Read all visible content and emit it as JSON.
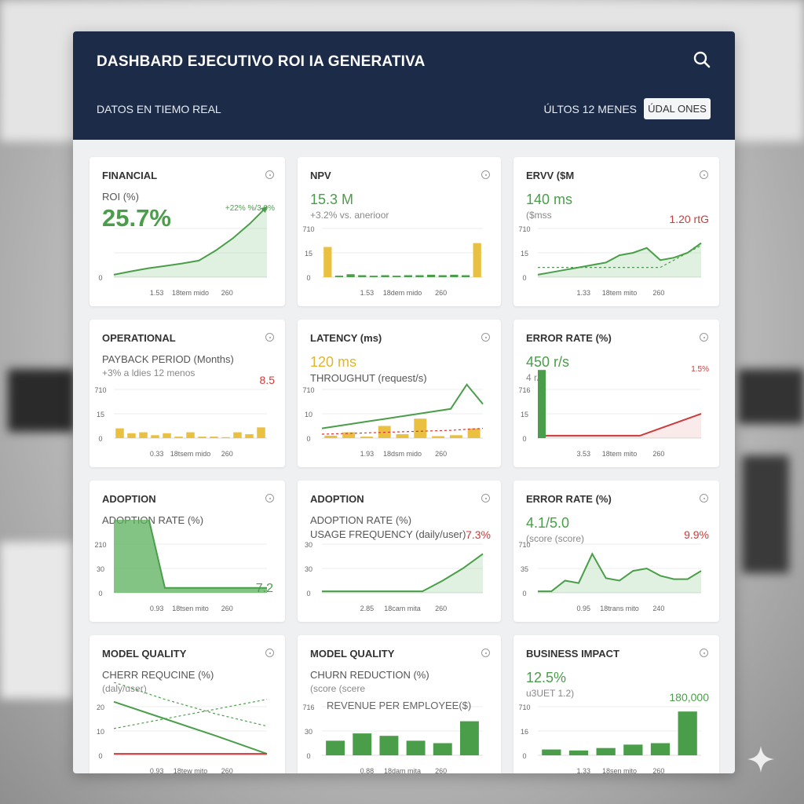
{
  "header": {
    "title": "DASHBARD EJECUTIVO ROI IA GENERATIVA",
    "subtitle": "DATOS EN TIEMO REAL",
    "range": "ÚLTOS 12 MENES",
    "update_button": "ÚDAL ONES",
    "search_icon": "search-icon"
  },
  "colors": {
    "header": "#1b2b48",
    "green": "#4a9e4a",
    "yellow": "#e9c040",
    "red": "#cc3b3b"
  },
  "cards": [
    {
      "title": "FINANCIAL",
      "lines": [
        {
          "text": "ROI (%)",
          "style": "label"
        },
        {
          "text": "25.7%",
          "style": "big"
        }
      ],
      "chart": {
        "y_ticks": [
          "",
          "",
          "0"
        ],
        "x_ticks": [
          "1.53",
          "18tem mido",
          "260"
        ],
        "annotation": {
          "text": "+22% %/3.9%",
          "color": "green",
          "pos": "top"
        },
        "series": [
          {
            "kind": "area",
            "color": "green",
            "arrow": true,
            "values": [
              5,
              12,
              18,
              23,
              28,
              34,
              55,
              80,
              110,
              145
            ]
          }
        ]
      }
    },
    {
      "title": "NPV",
      "lines": [
        {
          "text": "15.3 M",
          "style": "green"
        },
        {
          "text": "+3.2% vs. anerioor",
          "style": "sub"
        }
      ],
      "chart": {
        "y_ticks": [
          "710",
          "15",
          "0"
        ],
        "x_ticks": [
          "1.53",
          "18dem mido",
          "260"
        ],
        "series": [
          {
            "kind": "bars",
            "values": [
              62,
              3,
              6,
              4,
              3,
              4,
              3,
              4,
              4,
              5,
              4,
              5,
              4,
              70
            ],
            "colors": [
              "yellow",
              "green",
              "green",
              "green",
              "green",
              "green",
              "green",
              "green",
              "green",
              "green",
              "green",
              "green",
              "green",
              "yellow"
            ]
          }
        ]
      }
    },
    {
      "title": "ERVV ($M",
      "lines": [
        {
          "text": "140 ms",
          "style": "green"
        },
        {
          "text": "($mss",
          "style": "sub"
        }
      ],
      "chart": {
        "y_ticks": [
          "710",
          "15",
          "0"
        ],
        "x_ticks": [
          "1.33",
          "18tem mito",
          "260"
        ],
        "annotation": {
          "text": "1.20 rtG",
          "color": "red",
          "pos": "mid"
        },
        "series": [
          {
            "kind": "area",
            "color": "green",
            "values": [
              5,
              10,
              15,
              20,
              25,
              30,
              45,
              50,
              60,
              35,
              40,
              50,
              70
            ]
          },
          {
            "kind": "dashed",
            "color": "green",
            "values": [
              20,
              20,
              20,
              20,
              20,
              20,
              20,
              20,
              20,
              20,
              35,
              50,
              65
            ]
          }
        ]
      }
    },
    {
      "title": "OPERATIONAL",
      "lines": [
        {
          "text": "PAYBACK PERIOD (Months)",
          "style": "label"
        },
        {
          "text": "+3% a ldies 12 menos",
          "style": "sub"
        }
      ],
      "chart": {
        "y_ticks": [
          "710",
          "15",
          "0"
        ],
        "x_ticks": [
          "0.33",
          "18tsem mido",
          "260"
        ],
        "annotation": {
          "text": "8.5",
          "color": "red",
          "pos": "mid"
        },
        "series": [
          {
            "kind": "bars",
            "values": [
              20,
              10,
              12,
              6,
              10,
              3,
              12,
              3,
              3,
              2,
              12,
              8,
              22
            ],
            "colors": [
              "yellow"
            ]
          }
        ]
      }
    },
    {
      "title": "LATENCY (ms)",
      "lines": [
        {
          "text": "120 ms",
          "style": "yellow"
        },
        {
          "text": "THROUGHUT (request/s)",
          "style": "label"
        }
      ],
      "chart": {
        "y_ticks": [
          "710",
          "10",
          "0"
        ],
        "x_ticks": [
          "1.93",
          "18dsm mido",
          "260"
        ],
        "series": [
          {
            "kind": "bars",
            "values": [
              5,
              12,
              3,
              25,
              8,
              40,
              4,
              6,
              20
            ],
            "colors": [
              "yellow"
            ]
          },
          {
            "kind": "line",
            "color": "green",
            "values": [
              20,
              25,
              30,
              35,
              40,
              45,
              50,
              55,
              60,
              110,
              70
            ]
          },
          {
            "kind": "dashed",
            "color": "red",
            "values": [
              8,
              9,
              10,
              11,
              12,
              13,
              14,
              15,
              16,
              18,
              20
            ]
          }
        ]
      }
    },
    {
      "title": "ERROR RATE (%)",
      "lines": [
        {
          "text": "450 r/s",
          "style": "green"
        },
        {
          "text": "4 r/s",
          "style": "sub"
        }
      ],
      "chart": {
        "y_ticks": [
          "716",
          "15",
          "0"
        ],
        "x_ticks": [
          "3.53",
          "18tem mito",
          "260"
        ],
        "annotation": {
          "text": "1.5%",
          "color": "red",
          "pos": "top"
        },
        "series": [
          {
            "kind": "area",
            "color": "red",
            "values": [
              5,
              5,
              5,
              5,
              5,
              5,
              20,
              35,
              50
            ]
          },
          {
            "kind": "firstbar",
            "color": "green",
            "values": [
              140
            ]
          }
        ]
      }
    },
    {
      "title": "ADOPTION",
      "lines": [
        {
          "text": "ADOPTION RATE (%)",
          "style": "label"
        }
      ],
      "chart": {
        "y_ticks": [
          "210",
          "30",
          "0"
        ],
        "x_ticks": [
          "0.93",
          "18tsen mito",
          "260"
        ],
        "annotation": {
          "text": "7.2",
          "color": "green",
          "pos": "low"
        },
        "series": [
          {
            "kind": "area",
            "color": "green",
            "values": [
              160,
              160,
              160,
              10,
              10,
              10,
              10,
              10,
              10,
              10
            ],
            "dense": true
          }
        ]
      }
    },
    {
      "title": "ADOPTION",
      "lines": [
        {
          "text": "ADOPTION RATE (%)",
          "style": "label"
        },
        {
          "text": "USAGE FREQUENCY (daily/user)",
          "style": "label"
        }
      ],
      "chart": {
        "y_ticks": [
          "30",
          "30",
          "0"
        ],
        "x_ticks": [
          "2.85",
          "18cam mita",
          "260"
        ],
        "annotation": {
          "text": "7.3%",
          "color": "red",
          "pos": "mid"
        },
        "series": [
          {
            "kind": "area",
            "color": "green",
            "values": [
              3,
              3,
              3,
              3,
              3,
              3,
              25,
              50,
              80
            ]
          }
        ]
      }
    },
    {
      "title": "ERROR RATE (%)",
      "lines": [
        {
          "text": "4.1/5.0",
          "style": "green"
        },
        {
          "text": "(score (score)",
          "style": "sub"
        }
      ],
      "chart": {
        "y_ticks": [
          "710",
          "35",
          "0"
        ],
        "x_ticks": [
          "0.95",
          "18trans mito",
          "240"
        ],
        "annotation": {
          "text": "9.9%",
          "color": "red",
          "pos": "mid"
        },
        "series": [
          {
            "kind": "area",
            "color": "green",
            "values": [
              3,
              3,
              25,
              20,
              80,
              30,
              25,
              45,
              50,
              35,
              28,
              28,
              45
            ]
          }
        ]
      }
    },
    {
      "title": "MODEL QUALITY",
      "lines": [
        {
          "text": "CHERR REQUCINE (%)",
          "style": "label"
        },
        {
          "text": "(daly/user)",
          "style": "sub"
        }
      ],
      "chart": {
        "y_ticks": [
          "20",
          "10",
          "0"
        ],
        "x_ticks": [
          "0.93",
          "18tew mito",
          "260"
        ],
        "series": [
          {
            "kind": "dashed",
            "color": "green",
            "values": [
              150,
              115,
              85,
              60
            ]
          },
          {
            "kind": "dashed",
            "color": "green",
            "values": [
              55,
              75,
              95,
              115
            ]
          },
          {
            "kind": "line",
            "color": "green",
            "values": [
              110,
              75,
              40,
              3
            ]
          },
          {
            "kind": "line",
            "color": "red",
            "values": [
              3,
              3,
              3,
              3
            ]
          }
        ]
      }
    },
    {
      "title": "MODEL QUALITY",
      "lines": [
        {
          "text": "CHURN REDUCTION (%)",
          "style": "label"
        },
        {
          "text": "(score (scere",
          "style": "sub"
        }
      ],
      "chart": {
        "y_ticks": [
          "716",
          "30",
          "0"
        ],
        "x_ticks": [
          "0.88",
          "18dam mita",
          "260"
        ],
        "annotation": {
          "text": "REVENUE PER EMPLOYEE($)",
          "color": "gray",
          "pos": "topleft"
        },
        "series": [
          {
            "kind": "bars",
            "values": [
              30,
              45,
              40,
              30,
              25,
              70
            ],
            "colors": [
              "green"
            ]
          }
        ]
      }
    },
    {
      "title": "BUSINESS IMPACT",
      "lines": [
        {
          "text": "12.5%",
          "style": "green"
        },
        {
          "text": "u3UET 1.2)",
          "style": "sub"
        }
      ],
      "chart": {
        "y_ticks": [
          "710",
          "16",
          "0"
        ],
        "x_ticks": [
          "1.33",
          "18sen mito",
          "260"
        ],
        "annotation": {
          "text": "180,000",
          "color": "green",
          "pos": "mid"
        },
        "series": [
          {
            "kind": "bars",
            "values": [
              12,
              10,
              15,
              22,
              25,
              90
            ],
            "colors": [
              "green"
            ]
          }
        ]
      }
    }
  ]
}
